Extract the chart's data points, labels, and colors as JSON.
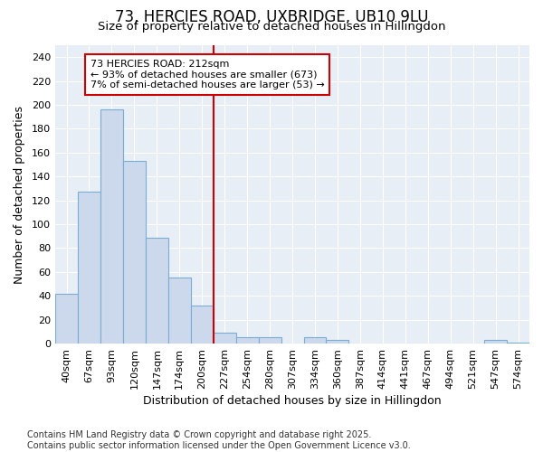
{
  "title": "73, HERCIES ROAD, UXBRIDGE, UB10 9LU",
  "subtitle": "Size of property relative to detached houses in Hillingdon",
  "xlabel": "Distribution of detached houses by size in Hillingdon",
  "ylabel": "Number of detached properties",
  "footer_line1": "Contains HM Land Registry data © Crown copyright and database right 2025.",
  "footer_line2": "Contains public sector information licensed under the Open Government Licence v3.0.",
  "categories": [
    "40sqm",
    "67sqm",
    "93sqm",
    "120sqm",
    "147sqm",
    "174sqm",
    "200sqm",
    "227sqm",
    "254sqm",
    "280sqm",
    "307sqm",
    "334sqm",
    "360sqm",
    "387sqm",
    "414sqm",
    "441sqm",
    "467sqm",
    "494sqm",
    "521sqm",
    "547sqm",
    "574sqm"
  ],
  "values": [
    42,
    127,
    196,
    153,
    89,
    55,
    32,
    9,
    5,
    5,
    0,
    5,
    3,
    0,
    0,
    0,
    0,
    0,
    0,
    3,
    1
  ],
  "bar_color": "#ccd9ec",
  "bar_edge_color": "#7aadd4",
  "vline_x_index": 6.5,
  "vline_color": "#cc0000",
  "annotation_text": "73 HERCIES ROAD: 212sqm\n← 93% of detached houses are smaller (673)\n7% of semi-detached houses are larger (53) →",
  "ylim": [
    0,
    250
  ],
  "yticks": [
    0,
    20,
    40,
    60,
    80,
    100,
    120,
    140,
    160,
    180,
    200,
    220,
    240
  ],
  "bg_color": "#ffffff",
  "plot_bg_color": "#e8eef5",
  "grid_color": "#ffffff",
  "title_fontsize": 12,
  "subtitle_fontsize": 9.5,
  "tick_fontsize": 8,
  "label_fontsize": 9,
  "footer_fontsize": 7
}
